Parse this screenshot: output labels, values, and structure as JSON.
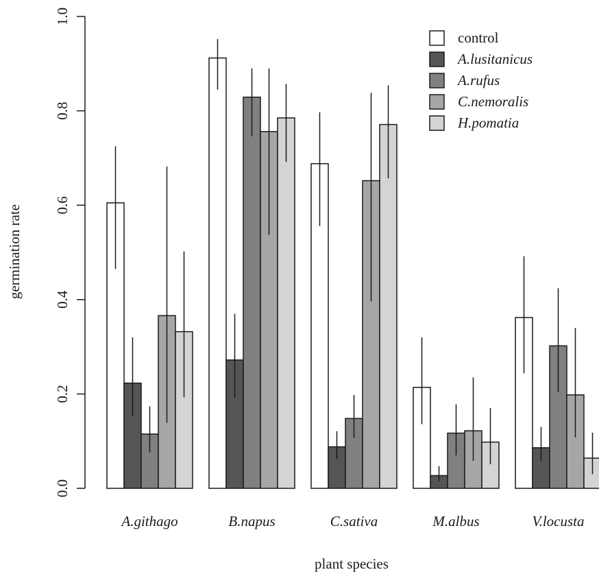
{
  "chart_data": {
    "type": "bar",
    "title": "",
    "xlabel": "plant species",
    "ylabel": "germination rate",
    "ylim": [
      0,
      1
    ],
    "yticks": [
      "0.0",
      "0.2",
      "0.4",
      "0.6",
      "0.8",
      "1.0"
    ],
    "grid": false,
    "legend_position": "top-right",
    "categories": [
      "A.githago",
      "B.napus",
      "C.sativa",
      "M.albus",
      "V.locusta"
    ],
    "series": [
      {
        "name": "control",
        "color": "#ffffff",
        "italic": false,
        "values": [
          0.605,
          0.912,
          0.688,
          0.214,
          0.362
        ],
        "err_low": [
          0.465,
          0.845,
          0.556,
          0.136,
          0.244
        ],
        "err_high": [
          0.725,
          0.952,
          0.797,
          0.32,
          0.492
        ]
      },
      {
        "name": "A.lusitanicus",
        "color": "#555555",
        "italic": true,
        "values": [
          0.223,
          0.272,
          0.088,
          0.027,
          0.086
        ],
        "err_low": [
          0.152,
          0.192,
          0.062,
          0.015,
          0.058
        ],
        "err_high": [
          0.32,
          0.37,
          0.121,
          0.047,
          0.13
        ]
      },
      {
        "name": "A.rufus",
        "color": "#808080",
        "italic": true,
        "values": [
          0.115,
          0.829,
          0.148,
          0.117,
          0.302
        ],
        "err_low": [
          0.076,
          0.746,
          0.107,
          0.07,
          0.204
        ],
        "err_high": [
          0.174,
          0.89,
          0.198,
          0.178,
          0.424
        ]
      },
      {
        "name": "C.nemoralis",
        "color": "#a6a6a6",
        "italic": true,
        "values": [
          0.366,
          0.756,
          0.652,
          0.122,
          0.198
        ],
        "err_low": [
          0.139,
          0.537,
          0.396,
          0.058,
          0.108
        ],
        "err_high": [
          0.682,
          0.89,
          0.838,
          0.235,
          0.34
        ]
      },
      {
        "name": "H.pomatia",
        "color": "#d4d4d4",
        "italic": true,
        "values": [
          0.332,
          0.785,
          0.771,
          0.098,
          0.064
        ],
        "err_low": [
          0.193,
          0.692,
          0.657,
          0.051,
          0.03
        ],
        "err_high": [
          0.502,
          0.857,
          0.854,
          0.17,
          0.118
        ]
      }
    ]
  }
}
